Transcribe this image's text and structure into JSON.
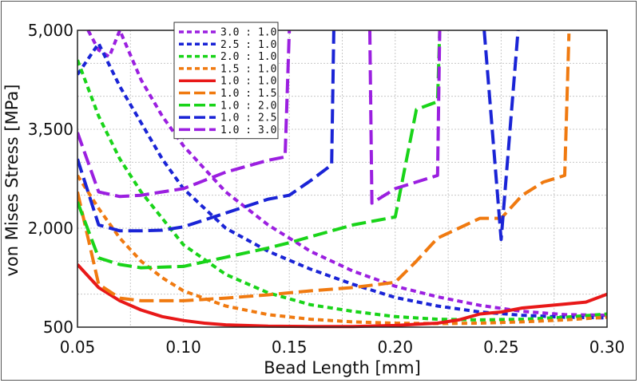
{
  "chart_data": {
    "type": "line",
    "title": "",
    "xlabel": "Bead Length [mm]",
    "ylabel": "von Mises Stress [MPa]",
    "xlim": [
      0.05,
      0.3
    ],
    "ylim": [
      500,
      5000
    ],
    "grid": true,
    "legend_position": "top-left",
    "x_ticks": [
      "0.05",
      "0.10",
      "0.15",
      "0.20",
      "0.25",
      "0.30"
    ],
    "y_ticks": [
      "500",
      "2,000",
      "3,500",
      "5,000"
    ],
    "x_tick_values": [
      0.05,
      0.1,
      0.15,
      0.2,
      0.25,
      0.3
    ],
    "y_tick_values": [
      500,
      2000,
      3500,
      5000
    ],
    "series": [
      {
        "name": "3.0 : 1.0",
        "color": "#9b1fe0",
        "dash": "short",
        "points": [
          [
            0.055,
            5000
          ],
          [
            0.06,
            4700
          ],
          [
            0.065,
            4600
          ],
          [
            0.07,
            5000
          ],
          [
            0.08,
            4250
          ],
          [
            0.09,
            3700
          ],
          [
            0.1,
            3250
          ],
          [
            0.12,
            2550
          ],
          [
            0.14,
            2050
          ],
          [
            0.16,
            1650
          ],
          [
            0.18,
            1350
          ],
          [
            0.2,
            1120
          ],
          [
            0.22,
            960
          ],
          [
            0.24,
            830
          ],
          [
            0.26,
            740
          ],
          [
            0.28,
            690
          ],
          [
            0.3,
            680
          ]
        ]
      },
      {
        "name": "2.5 : 1.0",
        "color": "#1a24d6",
        "dash": "short",
        "points": [
          [
            0.05,
            4330
          ],
          [
            0.06,
            4800
          ],
          [
            0.07,
            4150
          ],
          [
            0.08,
            3600
          ],
          [
            0.09,
            3050
          ],
          [
            0.1,
            2600
          ],
          [
            0.12,
            2000
          ],
          [
            0.14,
            1650
          ],
          [
            0.16,
            1380
          ],
          [
            0.18,
            1150
          ],
          [
            0.2,
            950
          ],
          [
            0.22,
            820
          ],
          [
            0.24,
            730
          ],
          [
            0.26,
            680
          ],
          [
            0.28,
            650
          ],
          [
            0.3,
            640
          ]
        ]
      },
      {
        "name": "2.0 : 1.0",
        "color": "#19d419",
        "dash": "short",
        "points": [
          [
            0.05,
            4550
          ],
          [
            0.06,
            3700
          ],
          [
            0.07,
            3050
          ],
          [
            0.08,
            2550
          ],
          [
            0.09,
            2150
          ],
          [
            0.1,
            1750
          ],
          [
            0.12,
            1300
          ],
          [
            0.14,
            1020
          ],
          [
            0.16,
            840
          ],
          [
            0.18,
            740
          ],
          [
            0.2,
            660
          ],
          [
            0.22,
            620
          ],
          [
            0.24,
            610
          ],
          [
            0.26,
            620
          ],
          [
            0.28,
            650
          ],
          [
            0.3,
            700
          ]
        ]
      },
      {
        "name": "1.5 : 1.0",
        "color": "#f07a10",
        "dash": "short",
        "points": [
          [
            0.05,
            2800
          ],
          [
            0.06,
            2300
          ],
          [
            0.07,
            1850
          ],
          [
            0.08,
            1500
          ],
          [
            0.09,
            1250
          ],
          [
            0.1,
            1050
          ],
          [
            0.12,
            820
          ],
          [
            0.14,
            690
          ],
          [
            0.16,
            620
          ],
          [
            0.18,
            580
          ],
          [
            0.2,
            560
          ],
          [
            0.22,
            555
          ],
          [
            0.24,
            560
          ],
          [
            0.26,
            580
          ],
          [
            0.28,
            610
          ],
          [
            0.3,
            650
          ]
        ]
      },
      {
        "name": "1.0 : 1.0",
        "color": "#e81818",
        "dash": "solid",
        "points": [
          [
            0.05,
            1450
          ],
          [
            0.06,
            1100
          ],
          [
            0.07,
            900
          ],
          [
            0.08,
            760
          ],
          [
            0.09,
            660
          ],
          [
            0.1,
            600
          ],
          [
            0.11,
            560
          ],
          [
            0.12,
            535
          ],
          [
            0.14,
            515
          ],
          [
            0.16,
            510
          ],
          [
            0.18,
            510
          ],
          [
            0.2,
            525
          ],
          [
            0.22,
            560
          ],
          [
            0.23,
            610
          ],
          [
            0.24,
            700
          ],
          [
            0.25,
            730
          ],
          [
            0.26,
            790
          ],
          [
            0.28,
            850
          ],
          [
            0.29,
            880
          ],
          [
            0.3,
            1000
          ]
        ]
      },
      {
        "name": "1.0 : 1.5",
        "color": "#f07a10",
        "dash": "long",
        "points": [
          [
            0.05,
            2550
          ],
          [
            0.06,
            1150
          ],
          [
            0.07,
            940
          ],
          [
            0.08,
            900
          ],
          [
            0.1,
            900
          ],
          [
            0.12,
            940
          ],
          [
            0.14,
            990
          ],
          [
            0.16,
            1050
          ],
          [
            0.18,
            1100
          ],
          [
            0.2,
            1180
          ],
          [
            0.21,
            1500
          ],
          [
            0.22,
            1850
          ],
          [
            0.23,
            2000
          ],
          [
            0.24,
            2150
          ],
          [
            0.25,
            2150
          ],
          [
            0.26,
            2500
          ],
          [
            0.27,
            2700
          ],
          [
            0.28,
            2800
          ],
          [
            0.282,
            4950
          ]
        ]
      },
      {
        "name": "1.0 : 2.0",
        "color": "#19d419",
        "dash": "long",
        "points": [
          [
            0.05,
            2400
          ],
          [
            0.06,
            1550
          ],
          [
            0.07,
            1450
          ],
          [
            0.08,
            1400
          ],
          [
            0.1,
            1420
          ],
          [
            0.12,
            1560
          ],
          [
            0.14,
            1700
          ],
          [
            0.15,
            1780
          ],
          [
            0.16,
            1870
          ],
          [
            0.18,
            2050
          ],
          [
            0.2,
            2170
          ],
          [
            0.21,
            3800
          ],
          [
            0.22,
            3920
          ],
          [
            0.221,
            5000
          ]
        ]
      },
      {
        "name": "1.0 : 2.5",
        "color": "#1a24d6",
        "dash": "long",
        "points": [
          [
            0.05,
            3050
          ],
          [
            0.06,
            2050
          ],
          [
            0.07,
            1960
          ],
          [
            0.08,
            1960
          ],
          [
            0.09,
            1970
          ],
          [
            0.1,
            2020
          ],
          [
            0.12,
            2230
          ],
          [
            0.14,
            2440
          ],
          [
            0.15,
            2500
          ],
          [
            0.16,
            2720
          ],
          [
            0.17,
            2960
          ],
          [
            0.171,
            5000
          ]
        ]
      },
      {
        "name": "1.0 : 3.0",
        "color": "#9b1fe0",
        "dash": "long",
        "points": [
          [
            0.05,
            3450
          ],
          [
            0.06,
            2550
          ],
          [
            0.07,
            2480
          ],
          [
            0.08,
            2500
          ],
          [
            0.1,
            2600
          ],
          [
            0.12,
            2850
          ],
          [
            0.14,
            3030
          ],
          [
            0.148,
            3080
          ],
          [
            0.15,
            5000
          ]
        ]
      },
      {
        "name": "",
        "color": "#9b1fe0",
        "dash": "long",
        "points": [
          [
            0.188,
            5000
          ],
          [
            0.189,
            2380
          ],
          [
            0.2,
            2600
          ],
          [
            0.21,
            2700
          ],
          [
            0.22,
            2800
          ],
          [
            0.221,
            5000
          ]
        ]
      },
      {
        "name": "",
        "color": "#1a24d6",
        "dash": "long",
        "points": [
          [
            0.242,
            5000
          ],
          [
            0.25,
            1830
          ],
          [
            0.258,
            5000
          ]
        ]
      }
    ]
  },
  "legend": {
    "items": [
      {
        "label": "3.0 : 1.0",
        "color": "#9b1fe0",
        "dash": "short"
      },
      {
        "label": "2.5 : 1.0",
        "color": "#1a24d6",
        "dash": "short"
      },
      {
        "label": "2.0 : 1.0",
        "color": "#19d419",
        "dash": "short"
      },
      {
        "label": "1.5 : 1.0",
        "color": "#f07a10",
        "dash": "short"
      },
      {
        "label": "1.0 : 1.0",
        "color": "#e81818",
        "dash": "solid"
      },
      {
        "label": "1.0 : 1.5",
        "color": "#f07a10",
        "dash": "long"
      },
      {
        "label": "1.0 : 2.0",
        "color": "#19d419",
        "dash": "long"
      },
      {
        "label": "1.0 : 2.5",
        "color": "#1a24d6",
        "dash": "long"
      },
      {
        "label": "1.0 : 3.0",
        "color": "#9b1fe0",
        "dash": "long"
      }
    ]
  }
}
